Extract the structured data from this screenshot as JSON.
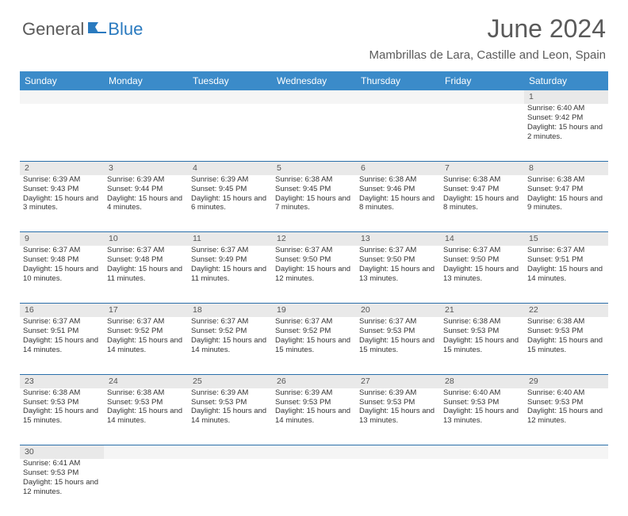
{
  "logo": {
    "part1": "General",
    "part2": "Blue"
  },
  "header": {
    "month_title": "June 2024",
    "location": "Mambrillas de Lara, Castille and Leon, Spain"
  },
  "colors": {
    "header_bg": "#3b8bc9",
    "daynum_bg": "#e9e9e9",
    "row_divider": "#2a6faa",
    "logo_gray": "#5a5a5a",
    "logo_blue": "#2a7abf"
  },
  "weekdays": [
    "Sunday",
    "Monday",
    "Tuesday",
    "Wednesday",
    "Thursday",
    "Friday",
    "Saturday"
  ],
  "weeks": [
    {
      "days": [
        null,
        null,
        null,
        null,
        null,
        null,
        {
          "n": "1",
          "sr": "6:40 AM",
          "ss": "9:42 PM",
          "dl": "15 hours and 2 minutes."
        }
      ]
    },
    {
      "days": [
        {
          "n": "2",
          "sr": "6:39 AM",
          "ss": "9:43 PM",
          "dl": "15 hours and 3 minutes."
        },
        {
          "n": "3",
          "sr": "6:39 AM",
          "ss": "9:44 PM",
          "dl": "15 hours and 4 minutes."
        },
        {
          "n": "4",
          "sr": "6:39 AM",
          "ss": "9:45 PM",
          "dl": "15 hours and 6 minutes."
        },
        {
          "n": "5",
          "sr": "6:38 AM",
          "ss": "9:45 PM",
          "dl": "15 hours and 7 minutes."
        },
        {
          "n": "6",
          "sr": "6:38 AM",
          "ss": "9:46 PM",
          "dl": "15 hours and 8 minutes."
        },
        {
          "n": "7",
          "sr": "6:38 AM",
          "ss": "9:47 PM",
          "dl": "15 hours and 8 minutes."
        },
        {
          "n": "8",
          "sr": "6:38 AM",
          "ss": "9:47 PM",
          "dl": "15 hours and 9 minutes."
        }
      ]
    },
    {
      "days": [
        {
          "n": "9",
          "sr": "6:37 AM",
          "ss": "9:48 PM",
          "dl": "15 hours and 10 minutes."
        },
        {
          "n": "10",
          "sr": "6:37 AM",
          "ss": "9:48 PM",
          "dl": "15 hours and 11 minutes."
        },
        {
          "n": "11",
          "sr": "6:37 AM",
          "ss": "9:49 PM",
          "dl": "15 hours and 11 minutes."
        },
        {
          "n": "12",
          "sr": "6:37 AM",
          "ss": "9:50 PM",
          "dl": "15 hours and 12 minutes."
        },
        {
          "n": "13",
          "sr": "6:37 AM",
          "ss": "9:50 PM",
          "dl": "15 hours and 13 minutes."
        },
        {
          "n": "14",
          "sr": "6:37 AM",
          "ss": "9:50 PM",
          "dl": "15 hours and 13 minutes."
        },
        {
          "n": "15",
          "sr": "6:37 AM",
          "ss": "9:51 PM",
          "dl": "15 hours and 14 minutes."
        }
      ]
    },
    {
      "days": [
        {
          "n": "16",
          "sr": "6:37 AM",
          "ss": "9:51 PM",
          "dl": "15 hours and 14 minutes."
        },
        {
          "n": "17",
          "sr": "6:37 AM",
          "ss": "9:52 PM",
          "dl": "15 hours and 14 minutes."
        },
        {
          "n": "18",
          "sr": "6:37 AM",
          "ss": "9:52 PM",
          "dl": "15 hours and 14 minutes."
        },
        {
          "n": "19",
          "sr": "6:37 AM",
          "ss": "9:52 PM",
          "dl": "15 hours and 15 minutes."
        },
        {
          "n": "20",
          "sr": "6:37 AM",
          "ss": "9:53 PM",
          "dl": "15 hours and 15 minutes."
        },
        {
          "n": "21",
          "sr": "6:38 AM",
          "ss": "9:53 PM",
          "dl": "15 hours and 15 minutes."
        },
        {
          "n": "22",
          "sr": "6:38 AM",
          "ss": "9:53 PM",
          "dl": "15 hours and 15 minutes."
        }
      ]
    },
    {
      "days": [
        {
          "n": "23",
          "sr": "6:38 AM",
          "ss": "9:53 PM",
          "dl": "15 hours and 15 minutes."
        },
        {
          "n": "24",
          "sr": "6:38 AM",
          "ss": "9:53 PM",
          "dl": "15 hours and 14 minutes."
        },
        {
          "n": "25",
          "sr": "6:39 AM",
          "ss": "9:53 PM",
          "dl": "15 hours and 14 minutes."
        },
        {
          "n": "26",
          "sr": "6:39 AM",
          "ss": "9:53 PM",
          "dl": "15 hours and 14 minutes."
        },
        {
          "n": "27",
          "sr": "6:39 AM",
          "ss": "9:53 PM",
          "dl": "15 hours and 13 minutes."
        },
        {
          "n": "28",
          "sr": "6:40 AM",
          "ss": "9:53 PM",
          "dl": "15 hours and 13 minutes."
        },
        {
          "n": "29",
          "sr": "6:40 AM",
          "ss": "9:53 PM",
          "dl": "15 hours and 12 minutes."
        }
      ]
    },
    {
      "days": [
        {
          "n": "30",
          "sr": "6:41 AM",
          "ss": "9:53 PM",
          "dl": "15 hours and 12 minutes."
        },
        null,
        null,
        null,
        null,
        null,
        null
      ]
    }
  ],
  "labels": {
    "sunrise_prefix": "Sunrise: ",
    "sunset_prefix": "Sunset: ",
    "daylight_prefix": "Daylight: "
  }
}
